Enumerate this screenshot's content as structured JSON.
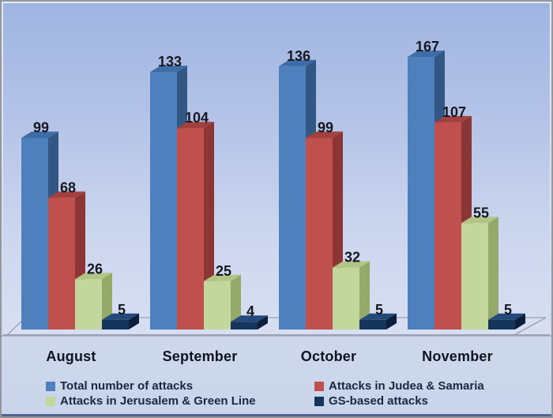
{
  "chart_data": {
    "type": "bar",
    "style": "3d-clustered",
    "title": "",
    "categories": [
      "August",
      "September",
      "October",
      "November"
    ],
    "series": [
      {
        "name": "Total number of attacks",
        "values": [
          99,
          133,
          136,
          167
        ],
        "colors": {
          "front": "#4d80bc",
          "top": "#3d6ca6",
          "side": "#335784"
        }
      },
      {
        "name": "Attacks in Judea & Samaria",
        "values": [
          68,
          104,
          99,
          107
        ],
        "colors": {
          "front": "#c0504d",
          "top": "#a1403e",
          "side": "#8b3634"
        }
      },
      {
        "name": "Attacks in Jerusalem & Green Line",
        "values": [
          26,
          25,
          32,
          55
        ],
        "colors": {
          "front": "#c3d69b",
          "top": "#b1c585",
          "side": "#94a96a"
        }
      },
      {
        "name": "GS-based attacks",
        "values": [
          5,
          4,
          5,
          5
        ],
        "colors": {
          "front": "#15355c",
          "top": "#234a7a",
          "side": "#0b1f3a"
        }
      }
    ],
    "data_labels": true,
    "data_label_color": "#15181e",
    "legend_position": "bottom",
    "value_axis_visible": false,
    "grid": false,
    "floor_outline_color": "#9aa2b2",
    "background_top": "#9fb5e1",
    "background_bottom": "#d8dff2"
  }
}
